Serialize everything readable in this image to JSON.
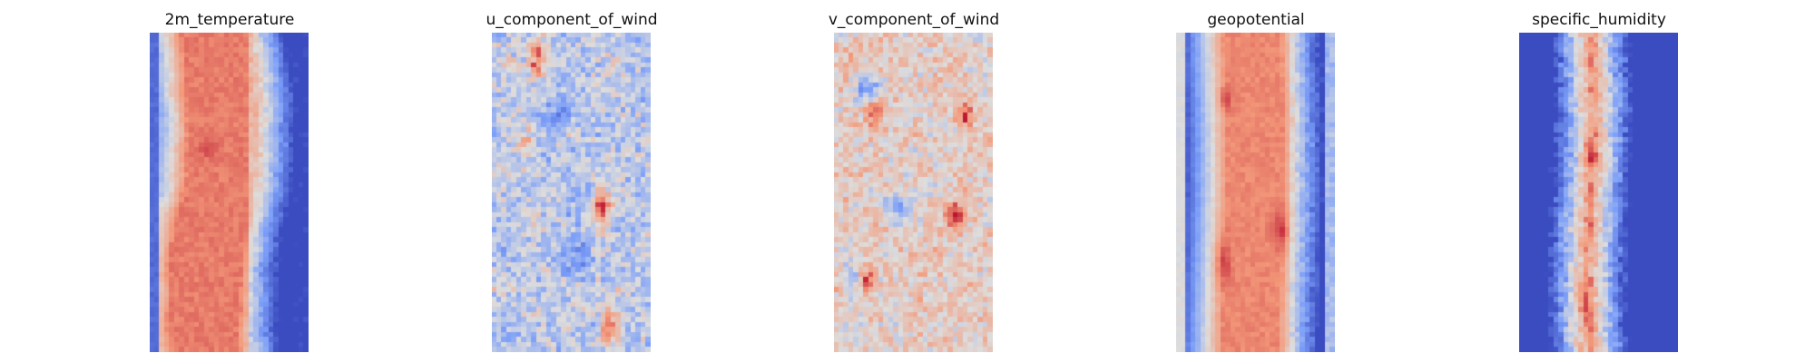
{
  "chart_data": [
    {
      "type": "heatmap",
      "title": "2m_temperature",
      "colormap": "coolwarm",
      "grid": false,
      "axes": "off",
      "pattern": "warm central band, cold edges, dark red spot upper-left of band"
    },
    {
      "type": "heatmap",
      "title": "u_component_of_wind",
      "colormap": "coolwarm",
      "grid": false,
      "axes": "off",
      "pattern": "noisy mixed field with dark red streaks at top, middle-right and bottom"
    },
    {
      "type": "heatmap",
      "title": "v_component_of_wind",
      "colormap": "coolwarm",
      "grid": false,
      "axes": "off",
      "pattern": "noisy mostly light-red field with blue blobs and dark red spots"
    },
    {
      "type": "heatmap",
      "title": "geopotential",
      "colormap": "coolwarm",
      "grid": false,
      "axes": "off",
      "pattern": "smooth red central band, blue/gray edges, darker blobs left of band"
    },
    {
      "type": "heatmap",
      "title": "specific_humidity",
      "colormap": "coolwarm",
      "grid": false,
      "axes": "off",
      "pattern": "dark blue edges, narrow noisy red central column"
    }
  ]
}
